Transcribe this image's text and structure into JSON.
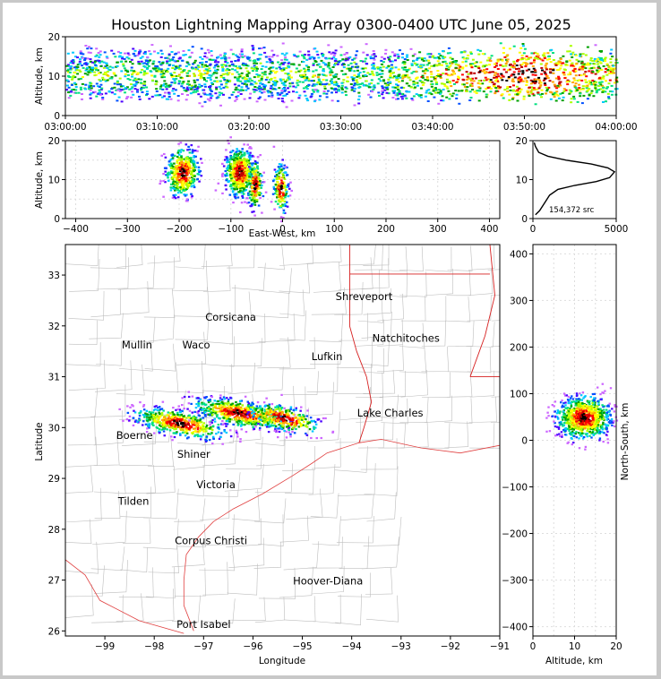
{
  "title": "Houston Lightning Mapping Array 0300-0400 UTC June 05, 2025",
  "chart_data": [
    {
      "type": "heatmap",
      "panel": "altitude-vs-time",
      "xlabel": "",
      "ylabel": "Altitude, km",
      "xlim": [
        "03:00:00",
        "04:00:00"
      ],
      "ylim": [
        0,
        20
      ],
      "x_ticks": [
        "03:00:00",
        "03:10:00",
        "03:20:00",
        "03:30:00",
        "03:40:00",
        "03:50:00",
        "04:00:00"
      ],
      "y_ticks": [
        "0",
        "10",
        "20"
      ],
      "density_band_km": [
        5,
        16
      ],
      "peak_time": "03:50:00",
      "peak_altitude_km": 12
    },
    {
      "type": "heatmap",
      "panel": "altitude-vs-east-west",
      "xlabel": "East-West, km",
      "ylabel": "Altitude, km",
      "xlim": [
        -420,
        420
      ],
      "ylim": [
        0,
        20
      ],
      "x_ticks": [
        "−400",
        "−300",
        "−200",
        "−100",
        "0",
        "100",
        "200",
        "300",
        "400"
      ],
      "y_ticks": [
        "0",
        "10",
        "20"
      ],
      "grid": true,
      "clusters_km": [
        {
          "x": -195,
          "z": 12
        },
        {
          "x": -85,
          "z": 12
        },
        {
          "x": -55,
          "z": 9
        },
        {
          "x": -5,
          "z": 8
        }
      ]
    },
    {
      "type": "line",
      "panel": "source-altitude-histogram",
      "xlabel": "",
      "ylabel": "",
      "xlim": [
        0,
        5000
      ],
      "ylim": [
        0,
        20
      ],
      "x_ticks": [
        "0",
        "5000"
      ],
      "y_ticks": [
        "0",
        "10",
        "20"
      ],
      "annotation": "154,372 src",
      "x": [
        150,
        400,
        700,
        1000,
        1500,
        2500,
        3800,
        4600,
        4900,
        4500,
        3500,
        2000,
        900,
        350,
        150,
        80
      ],
      "y": [
        1,
        2,
        4,
        6,
        7.5,
        8.5,
        9.5,
        10.5,
        12,
        13,
        14,
        15,
        16,
        17,
        18.5,
        19.5
      ]
    },
    {
      "type": "scatter",
      "panel": "plan-view-map",
      "xlabel": "Longitude",
      "ylabel": "Latitude",
      "xlim": [
        -99.8,
        -91
      ],
      "ylim": [
        25.9,
        33.6
      ],
      "x_ticks": [
        "−99",
        "−98",
        "−97",
        "−96",
        "−95",
        "−94",
        "−93",
        "−92",
        "−91"
      ],
      "y_ticks": [
        "26",
        "27",
        "28",
        "29",
        "30",
        "31",
        "32",
        "33"
      ],
      "cities": [
        {
          "name": "Shreveport",
          "lon": -93.75,
          "lat": 32.58,
          "color": "#000000"
        },
        {
          "name": "Corsicana",
          "lon": -96.45,
          "lat": 32.17,
          "color": "#000000"
        },
        {
          "name": "Natchitoches",
          "lon": -92.9,
          "lat": 31.76,
          "color": "#000000"
        },
        {
          "name": "Mullin",
          "lon": -98.35,
          "lat": 31.63,
          "color": "#f4a460"
        },
        {
          "name": "Waco",
          "lon": -97.15,
          "lat": 31.63,
          "color": "#000000"
        },
        {
          "name": "Lufkin",
          "lon": -94.5,
          "lat": 31.4,
          "color": "#000000"
        },
        {
          "name": "Lake Charles",
          "lon": -93.22,
          "lat": 30.29,
          "color": "#000000"
        },
        {
          "name": "Boerne",
          "lon": -98.4,
          "lat": 29.85,
          "color": "#000000"
        },
        {
          "name": "Shiner",
          "lon": -97.2,
          "lat": 29.48,
          "color": "#000000"
        },
        {
          "name": "Victoria",
          "lon": -96.75,
          "lat": 28.88,
          "color": "#000000"
        },
        {
          "name": "Tilden",
          "lon": -98.42,
          "lat": 28.55,
          "color": "#000000"
        },
        {
          "name": "Corpus Christi",
          "lon": -96.85,
          "lat": 27.78,
          "color": "#000000"
        },
        {
          "name": "Hoover-Diana",
          "lon": -94.48,
          "lat": 26.98,
          "color": "#0000ff"
        },
        {
          "name": "Port Isabel",
          "lon": -97.0,
          "lat": 26.13,
          "color": "#000000"
        }
      ],
      "storm_clusters": [
        {
          "lon": -97.5,
          "lat": 30.1
        },
        {
          "lon": -96.3,
          "lat": 30.3
        },
        {
          "lon": -95.4,
          "lat": 30.2
        }
      ]
    },
    {
      "type": "heatmap",
      "panel": "north-south-vs-altitude",
      "xlabel": "Altitude, km",
      "ylabel": "North-South, km",
      "xlim": [
        0,
        20
      ],
      "ylim": [
        -420,
        420
      ],
      "x_ticks": [
        "0",
        "10",
        "20"
      ],
      "y_ticks": [
        "−400",
        "−300",
        "−200",
        "−100",
        "0",
        "100",
        "200",
        "300",
        "400"
      ],
      "grid": true,
      "peak": {
        "altitude_km": 12,
        "ns_km": 50
      }
    }
  ]
}
